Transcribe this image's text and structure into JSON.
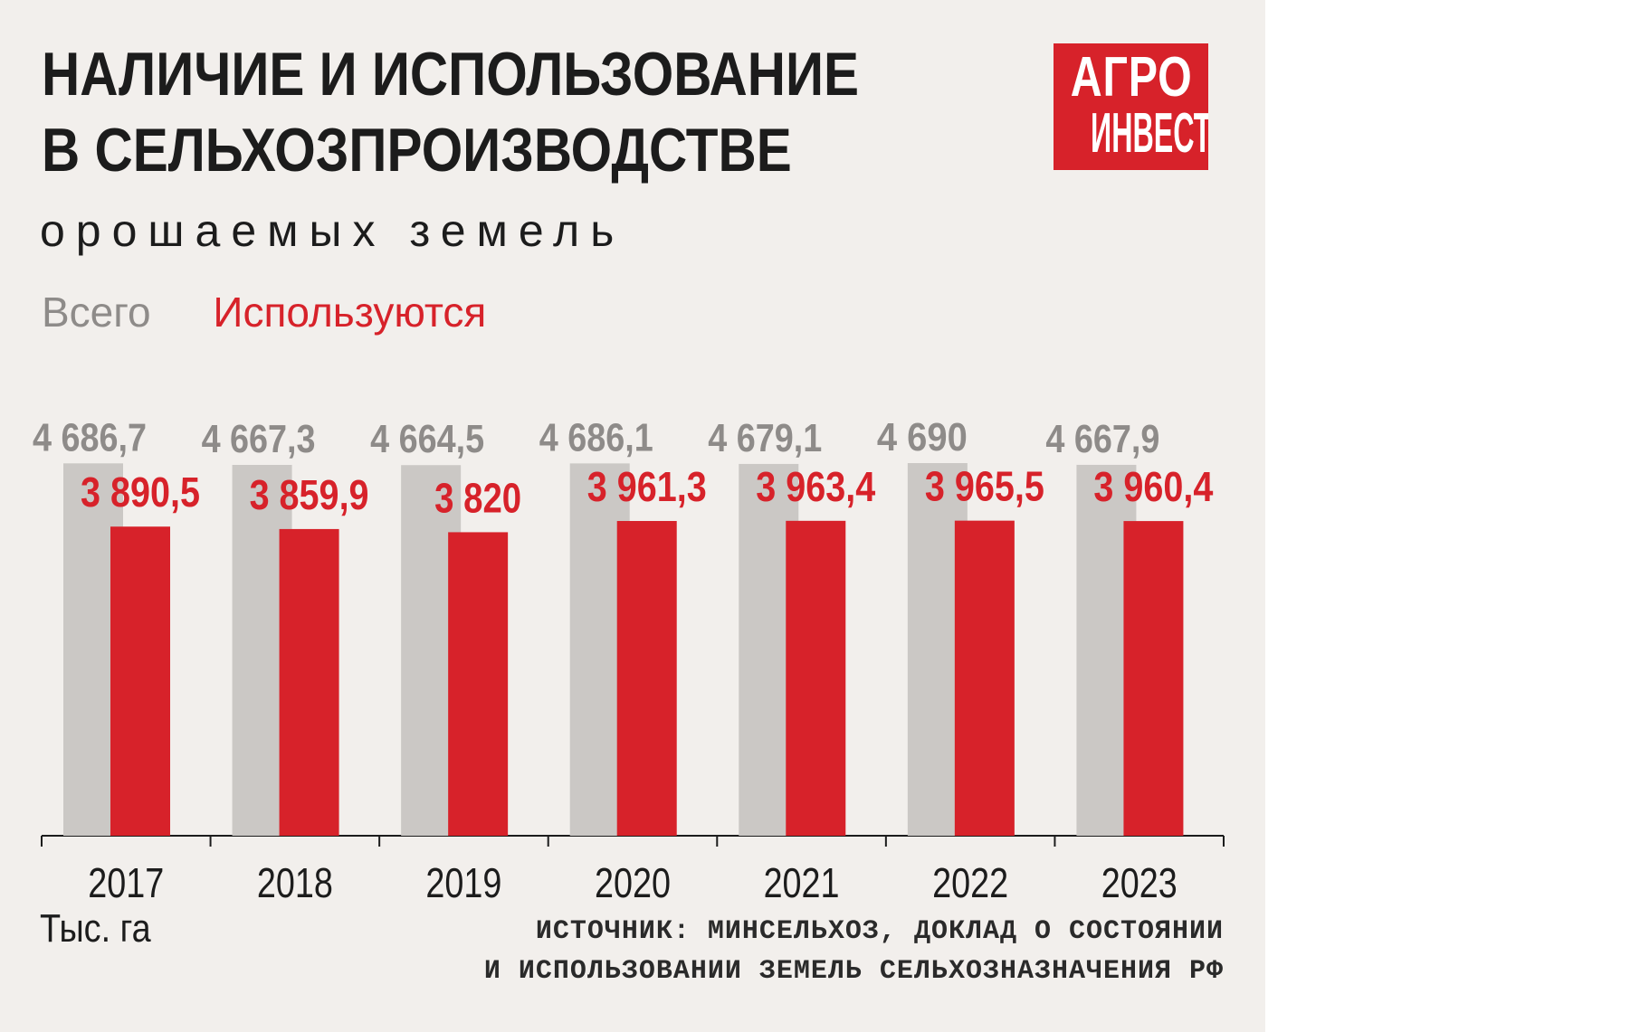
{
  "title_lines": [
    "НАЛИЧИЕ И ИСПОЛЬЗОВАНИЕ",
    "В СЕЛЬХОЗПРОИЗВОДСТВЕ"
  ],
  "subtitle": "орошаемых земель",
  "logo": {
    "line1": "АГРО",
    "line2": "ИНВЕСТОР"
  },
  "unit": "Тыс. га",
  "source_lines": [
    "ИСТОЧНИК: МИНСЕЛЬХОЗ, ДОКЛАД О СОСТОЯНИИ",
    "И ИСПОЛЬЗОВАНИИ ЗЕМЕЛЬ СЕЛЬХОЗНАЗНАЧЕНИЯ РФ"
  ],
  "colors": {
    "total": "#cbc8c5",
    "total_label": "#8e8b89",
    "used": "#d7222a",
    "background": "#f2efec",
    "axis": "#1c1c1c"
  },
  "chart_data": {
    "type": "bar",
    "categories": [
      "2017",
      "2018",
      "2019",
      "2020",
      "2021",
      "2022",
      "2023"
    ],
    "series": [
      {
        "name": "Всего",
        "values": [
          4686.7,
          4667.3,
          4664.5,
          4686.1,
          4679.1,
          4690,
          4667.9
        ],
        "labels": [
          "4 686,7",
          "4 667,3",
          "4 664,5",
          "4 686,1",
          "4 679,1",
          "4 690",
          "4 667,9"
        ]
      },
      {
        "name": "Используются",
        "values": [
          3890.5,
          3859.9,
          3820,
          3961.3,
          3963.4,
          3965.5,
          3960.4
        ],
        "labels": [
          "3 890,5",
          "3 859,9",
          "3 820",
          "3 961,3",
          "3 963,4",
          "3 965,5",
          "3 960,4"
        ]
      }
    ],
    "ylabel": "Тыс. га",
    "legend": "top-left",
    "grid": false
  }
}
